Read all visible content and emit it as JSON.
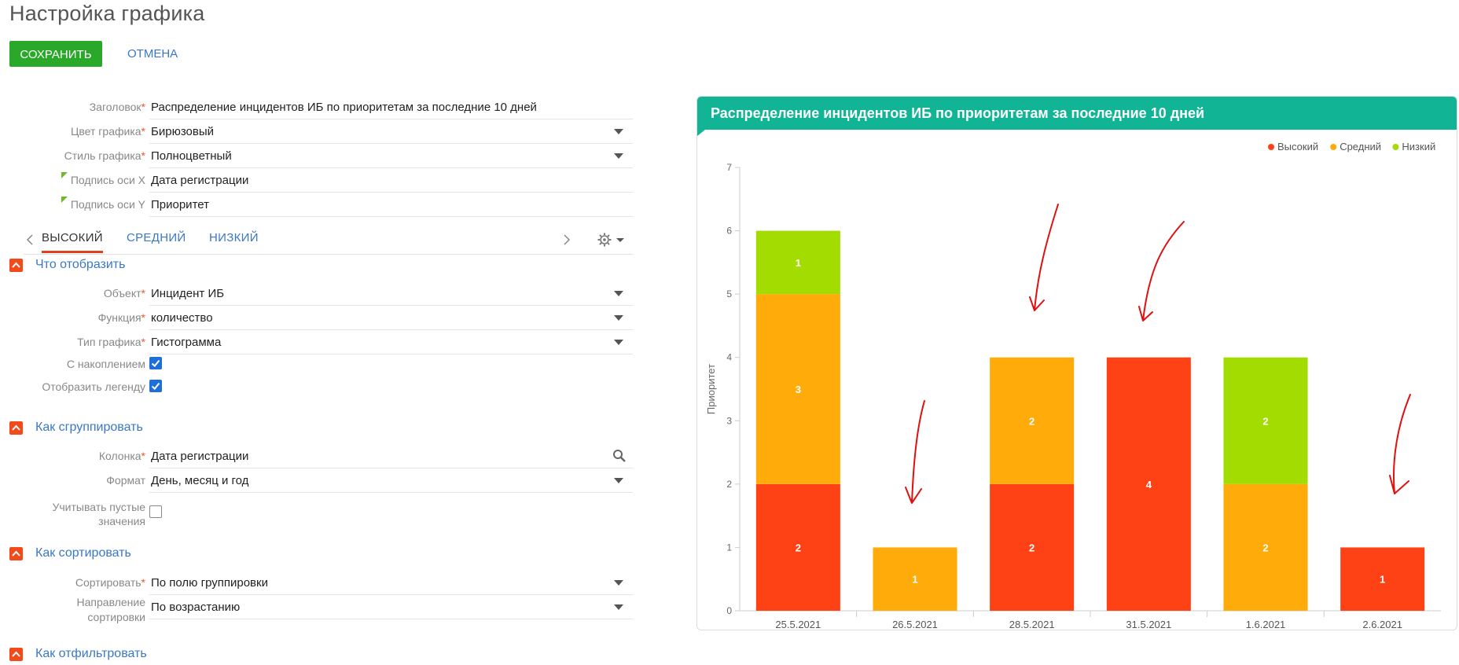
{
  "page": {
    "title": "Настройка графика"
  },
  "actions": {
    "save": "СОХРАНИТЬ",
    "cancel": "ОТМЕНА"
  },
  "settings": {
    "title": {
      "label": "Заголовок",
      "value": "Распределение инцидентов ИБ по приоритетам за последние 10 дней"
    },
    "color": {
      "label": "Цвет графика",
      "value": "Бирюзовый"
    },
    "style": {
      "label": "Стиль графика",
      "value": "Полноцветный"
    },
    "x_axis": {
      "label": "Подпись оси X",
      "value": "Дата регистрации"
    },
    "y_axis": {
      "label": "Подпись оси Y",
      "value": "Приоритет"
    }
  },
  "tabs": [
    "ВЫСОКИЙ",
    "СРЕДНИЙ",
    "НИЗКИЙ"
  ],
  "sections": {
    "what": {
      "title": "Что отобразить",
      "object": {
        "label": "Объект",
        "value": "Инцидент ИБ"
      },
      "function": {
        "label": "Функция",
        "value": "количество"
      },
      "chart_type": {
        "label": "Тип графика",
        "value": "Гистограмма"
      },
      "accumulate": {
        "label": "С накоплением",
        "checked": true
      },
      "legend": {
        "label": "Отобразить легенду",
        "checked": true
      }
    },
    "group": {
      "title": "Как сгруппировать",
      "column": {
        "label": "Колонка",
        "value": "Дата регистрации"
      },
      "format": {
        "label": "Формат",
        "value": "День, месяц и год"
      },
      "empty": {
        "label_1": "Учитывать пустые",
        "label_2": "значения",
        "checked": false
      }
    },
    "sort": {
      "title": "Как сортировать",
      "by": {
        "label": "Сортировать",
        "value": "По полю группировки"
      },
      "direction": {
        "label_1": "Направление",
        "label_2": "сортировки",
        "value": "По возрастанию"
      }
    },
    "filter": {
      "title": "Как отфильтровать"
    }
  },
  "colors": {
    "accent": "#11b595",
    "save": "#2aa82a",
    "link": "#3b78c4",
    "high": "#ff4216",
    "medium": "#ffab0a",
    "low": "#a3dc00"
  },
  "chart_data": {
    "type": "bar",
    "stacked": true,
    "title": "Распределение инцидентов ИБ по приоритетам за последние 10 дней",
    "xlabel": "Дата регистрации",
    "ylabel": "Приоритет",
    "ylim": [
      0,
      7
    ],
    "yticks": [
      0,
      1,
      2,
      3,
      4,
      5,
      6,
      7
    ],
    "categories": [
      "25.5.2021",
      "26.5.2021",
      "28.5.2021",
      "31.5.2021",
      "1.6.2021",
      "2.6.2021"
    ],
    "series": [
      {
        "name": "Высокий",
        "color": "#ff4216",
        "values": [
          2,
          0,
          2,
          4,
          0,
          1
        ]
      },
      {
        "name": "Средний",
        "color": "#ffab0a",
        "values": [
          3,
          1,
          2,
          0,
          2,
          0
        ]
      },
      {
        "name": "Низкий",
        "color": "#a3dc00",
        "values": [
          1,
          0,
          0,
          0,
          2,
          0
        ]
      }
    ],
    "legend": "top-right",
    "grid": false
  }
}
